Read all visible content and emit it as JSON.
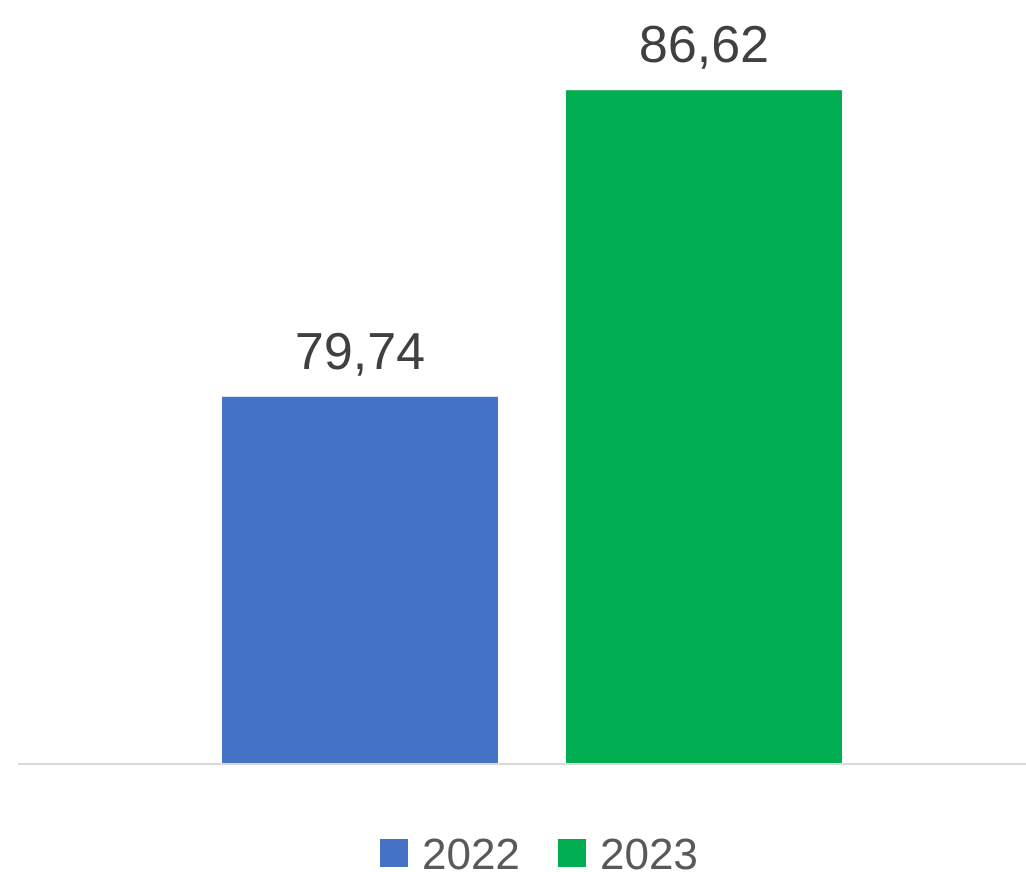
{
  "chart_data": {
    "type": "bar",
    "title": "",
    "xlabel": "",
    "ylabel": "",
    "categories": [
      ""
    ],
    "series": [
      {
        "name": "2022",
        "values": [
          79.74
        ],
        "label": "79,74",
        "color": "#4472C4"
      },
      {
        "name": "2023",
        "values": [
          86.62
        ],
        "label": "86,62",
        "color": "#00AD50"
      }
    ],
    "ylim": [
      71.5,
      87.5
    ],
    "grid": false,
    "legend": "bottom"
  }
}
